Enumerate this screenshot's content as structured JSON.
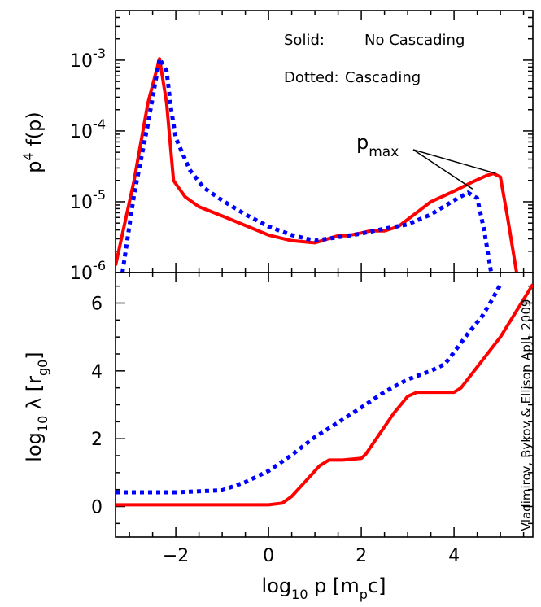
{
  "chart_data": [
    {
      "type": "line",
      "panel": "top",
      "ylabel": "p4 f(p)",
      "ylabel_parts": {
        "base": "p",
        "sup": "4",
        "rest": " f(p)"
      },
      "yscale": "log",
      "xlim": [
        -3.3,
        5.7
      ],
      "ylim_log10": [
        -6,
        -2.3
      ],
      "yticks": [
        {
          "log": -3,
          "label_base": "10",
          "label_exp": "-3"
        },
        {
          "log": -4,
          "label_base": "10",
          "label_exp": "-4"
        },
        {
          "log": -5,
          "label_base": "10",
          "label_exp": "-5"
        },
        {
          "log": -6,
          "label_base": "10",
          "label_exp": "-6"
        }
      ],
      "legend": {
        "solid_key": "Solid:",
        "solid_value": "No Cascading",
        "dotted_key": "Dotted:",
        "dotted_value": "Cascading",
        "placement": "top-right"
      },
      "annotation": {
        "text_base": "p",
        "text_sub": "max",
        "points_to": [
          [
            4.4,
            -4.82
          ],
          [
            4.9,
            -4.6
          ]
        ]
      },
      "series": [
        {
          "style": "solid",
          "color": "#ff0000",
          "x": [
            -3.3,
            -2.9,
            -2.6,
            -2.35,
            -2.2,
            -2.05,
            -1.8,
            -1.5,
            -1.0,
            0.0,
            0.5,
            1.0,
            1.5,
            1.7,
            2.0,
            2.2,
            2.5,
            2.8,
            3.1,
            3.5,
            4.0,
            4.4,
            4.7,
            4.85,
            5.0,
            5.15,
            5.35
          ],
          "y_log10": [
            -5.9,
            -4.7,
            -3.6,
            -2.98,
            -3.6,
            -4.7,
            -4.93,
            -5.07,
            -5.2,
            -5.47,
            -5.55,
            -5.58,
            -5.48,
            -5.48,
            -5.44,
            -5.41,
            -5.41,
            -5.35,
            -5.2,
            -5.0,
            -4.85,
            -4.72,
            -4.63,
            -4.6,
            -4.65,
            -5.2,
            -6.0
          ]
        },
        {
          "style": "dotted",
          "color": "#0000ff",
          "x": [
            -3.15,
            -2.9,
            -2.6,
            -2.35,
            -2.2,
            -2.1,
            -2.0,
            -1.7,
            -1.4,
            -1.0,
            -0.5,
            0.0,
            0.5,
            1.0,
            1.5,
            2.0,
            2.5,
            3.0,
            3.5,
            4.0,
            4.3,
            4.5,
            4.65,
            4.8
          ],
          "y_log10": [
            -6.0,
            -4.9,
            -3.9,
            -2.98,
            -3.15,
            -3.7,
            -4.1,
            -4.55,
            -4.8,
            -4.98,
            -5.18,
            -5.35,
            -5.47,
            -5.55,
            -5.5,
            -5.45,
            -5.38,
            -5.32,
            -5.18,
            -4.98,
            -4.87,
            -4.95,
            -5.4,
            -6.0
          ]
        }
      ]
    },
    {
      "type": "line",
      "panel": "bottom",
      "ylabel": "log10 λ [rg0]",
      "ylabel_parts": {
        "a": "log",
        "a_sub": "10",
        "b": " λ [r",
        "b_sub": "g0",
        "c": "]"
      },
      "xlabel": "log10 p [mpc]",
      "xlabel_parts": {
        "a": "log",
        "a_sub": "10",
        "b": " p [m",
        "b_sub": "p",
        "c": "c]"
      },
      "xlim": [
        -3.3,
        5.7
      ],
      "ylim": [
        -0.9,
        6.9
      ],
      "xticks": [
        -2,
        0,
        2,
        4
      ],
      "xtick_labels": [
        "−2",
        "0",
        "2",
        "4"
      ],
      "yticks": [
        0,
        2,
        4,
        6
      ],
      "ytick_labels": [
        "0",
        "2",
        "4",
        "6"
      ],
      "series": [
        {
          "style": "solid",
          "color": "#ff0000",
          "x": [
            -3.3,
            -2.0,
            -1.0,
            0.0,
            0.3,
            0.5,
            0.8,
            1.1,
            1.3,
            1.6,
            2.0,
            2.1,
            2.4,
            2.7,
            3.0,
            3.2,
            3.5,
            4.0,
            4.15,
            5.0,
            5.7
          ],
          "y": [
            0.05,
            0.05,
            0.05,
            0.05,
            0.1,
            0.3,
            0.75,
            1.2,
            1.37,
            1.37,
            1.42,
            1.55,
            2.15,
            2.75,
            3.25,
            3.37,
            3.37,
            3.37,
            3.5,
            5.0,
            6.55
          ]
        },
        {
          "style": "dotted",
          "color": "#0000ff",
          "x": [
            -3.3,
            -2.0,
            -1.0,
            -0.5,
            0.0,
            0.5,
            1.0,
            1.5,
            2.0,
            2.5,
            3.0,
            3.5,
            3.8,
            4.0,
            4.3,
            4.6,
            4.8,
            5.0
          ],
          "y": [
            0.42,
            0.42,
            0.48,
            0.72,
            1.05,
            1.52,
            2.05,
            2.48,
            2.92,
            3.38,
            3.75,
            4.0,
            4.2,
            4.55,
            5.1,
            5.6,
            6.05,
            6.55
          ]
        }
      ]
    }
  ],
  "credit": "Vladimirov, Bykov & Ellison ApJL 2009"
}
